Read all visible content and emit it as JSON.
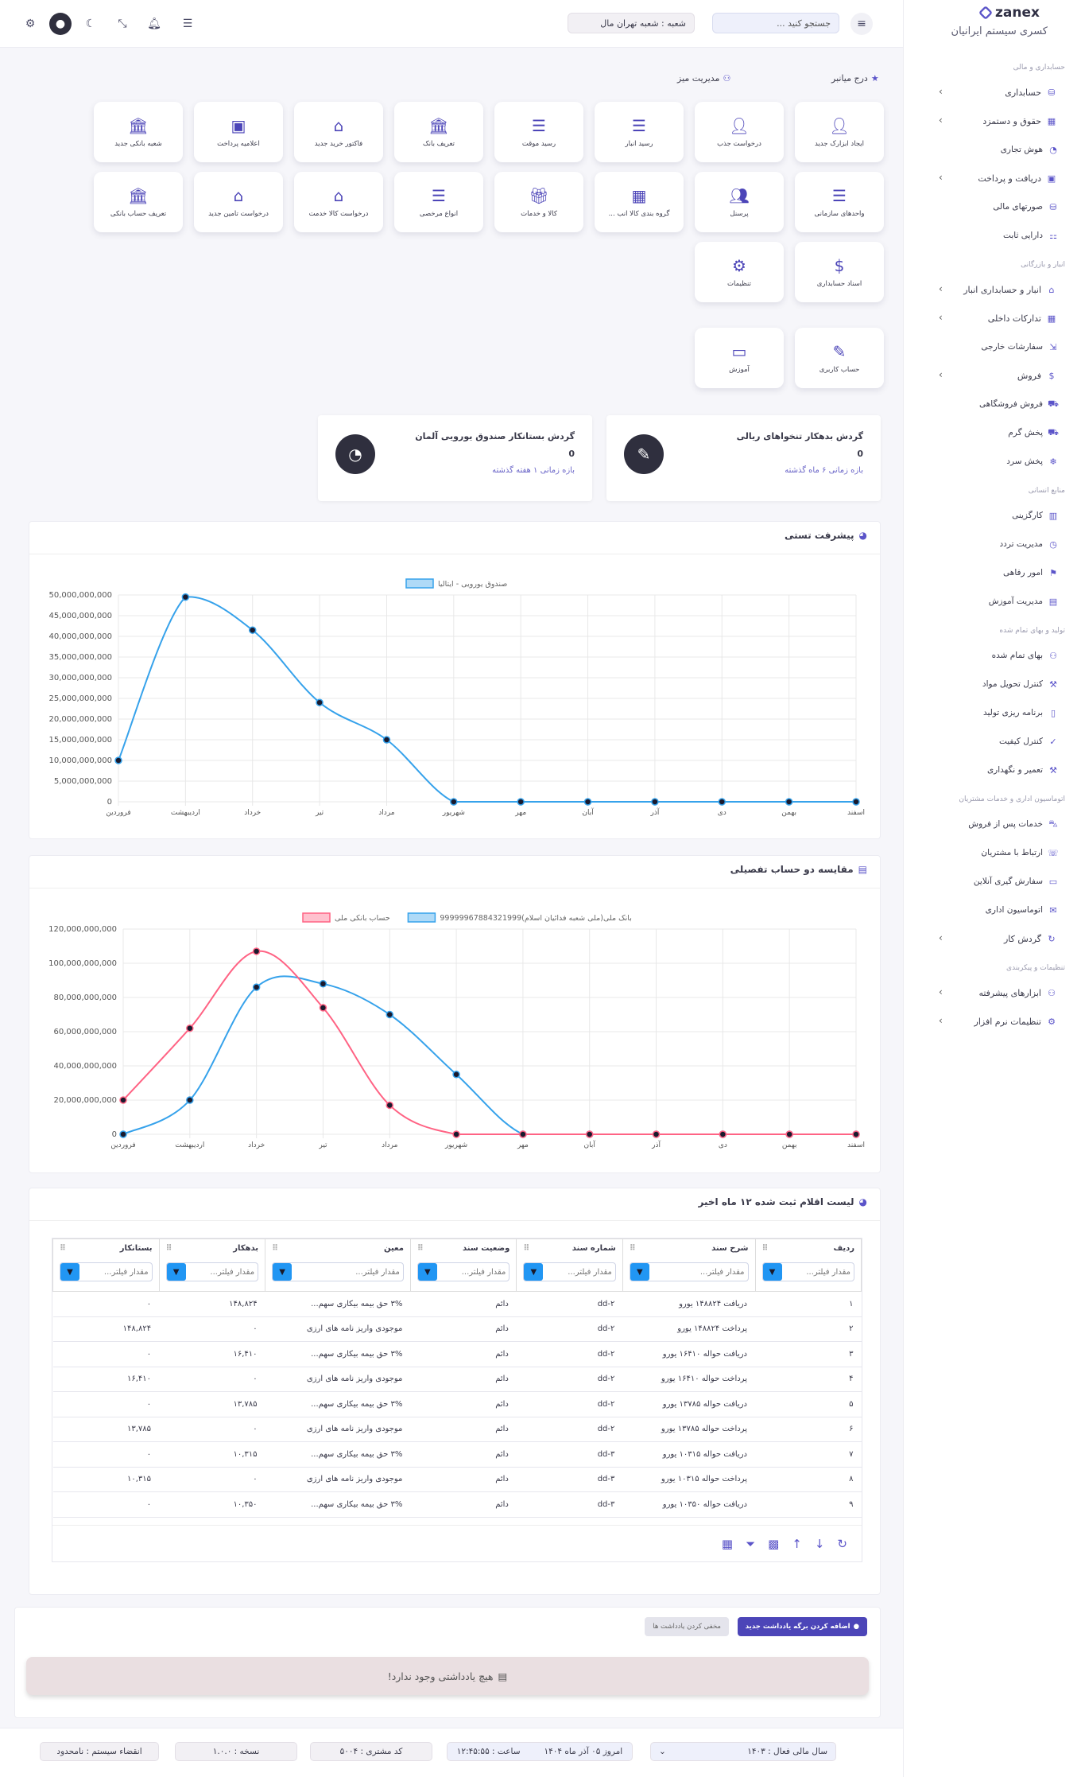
{
  "header": {
    "search_placeholder": "جستجو کنید ...",
    "branch": "شعبه : شعبه تهران مال"
  },
  "brand": {
    "name": "zanex",
    "company": "کسری سیستم ایرانیان"
  },
  "sidebar": {
    "sections": [
      {
        "title": "حسابداری و مالی",
        "items": [
          {
            "label": "حسابداری",
            "chev": true,
            "icon": "coins-icon"
          },
          {
            "label": "حقوق و دستمزد",
            "chev": true,
            "icon": "payroll-icon"
          },
          {
            "label": "هوش تجاری",
            "chev": false,
            "icon": "chart-pie-icon"
          },
          {
            "label": "دریافت و پرداخت",
            "chev": true,
            "icon": "money-icon"
          },
          {
            "label": "صورتهای مالی",
            "chev": false,
            "icon": "report-icon"
          },
          {
            "label": "دارایی ثابت",
            "chev": false,
            "icon": "asset-icon"
          }
        ]
      },
      {
        "title": "انبار و بازرگانی",
        "items": [
          {
            "label": "انبار و حسابداری انبار",
            "chev": true,
            "icon": "warehouse-icon"
          },
          {
            "label": "تدارکات داخلی",
            "chev": true,
            "icon": "procurement-icon"
          },
          {
            "label": "سفارشات خارجی",
            "chev": false,
            "icon": "import-icon"
          },
          {
            "label": "فروش",
            "chev": true,
            "icon": "invoice-icon"
          },
          {
            "label": "فروش فروشگاهی",
            "chev": false,
            "icon": "cart-icon"
          },
          {
            "label": "پخش گرم",
            "chev": false,
            "icon": "truck-icon"
          },
          {
            "label": "پخش سرد",
            "chev": false,
            "icon": "snow-truck-icon"
          }
        ]
      },
      {
        "title": "منابع انسانی",
        "items": [
          {
            "label": "کارگزینی",
            "chev": false,
            "icon": "folder-icon"
          },
          {
            "label": "مدیریت تردد",
            "chev": false,
            "icon": "clock-icon"
          },
          {
            "label": "امور رفاهی",
            "chev": false,
            "icon": "welfare-icon"
          },
          {
            "label": "مدیریت آموزش",
            "chev": false,
            "icon": "training-icon"
          }
        ]
      },
      {
        "title": "تولید و بهای تمام شده",
        "items": [
          {
            "label": "بهای تمام شده",
            "chev": false,
            "icon": "cost-icon"
          },
          {
            "label": "کنترل تحویل مواد",
            "chev": false,
            "icon": "material-icon"
          },
          {
            "label": "برنامه ریزی تولید",
            "chev": false,
            "icon": "plan-icon"
          },
          {
            "label": "کنترل کیفیت",
            "chev": false,
            "icon": "quality-icon"
          },
          {
            "label": "تعمیر و نگهداری",
            "chev": false,
            "icon": "wrench-icon"
          }
        ]
      },
      {
        "title": "اتوماسیون اداری و خدمات مشتریان",
        "items": [
          {
            "label": "خدمات پس از فروش",
            "chev": false,
            "icon": "car-icon"
          },
          {
            "label": "ارتباط با مشتریان",
            "chev": false,
            "icon": "crm-icon"
          },
          {
            "label": "سفارش گیری آنلاین",
            "chev": false,
            "icon": "online-icon"
          },
          {
            "label": "اتوماسیون اداری",
            "chev": false,
            "icon": "office-icon"
          },
          {
            "label": "گردش کار",
            "chev": true,
            "icon": "workflow-icon"
          }
        ]
      },
      {
        "title": "تنظیمات و پیکربندی",
        "items": [
          {
            "label": "ابزارهای پیشرفته",
            "chev": true,
            "icon": "tools-icon"
          },
          {
            "label": "تنظیمات نرم افزار",
            "chev": true,
            "icon": "gear-icon"
          }
        ]
      }
    ]
  },
  "shortcuts": {
    "quick_label": "درج میانبر",
    "manage_label": "مدیریت میز",
    "tiles": [
      {
        "label": "ایجاد ابزارک جدید",
        "icon": "user-shield-icon"
      },
      {
        "label": "درخواست جذب",
        "icon": "user-plus-icon"
      },
      {
        "label": "رسید انبار",
        "icon": "list-box-icon"
      },
      {
        "label": "رسید موقت",
        "icon": "list-box-icon"
      },
      {
        "label": "تعریف بانک",
        "icon": "bank-icon"
      },
      {
        "label": "فاکتور خرید جدید",
        "icon": "house-icon"
      },
      {
        "label": "اعلامیه پرداخت",
        "icon": "money-icon"
      },
      {
        "label": "شعبه بانکی جدید",
        "icon": "bank-icon"
      },
      {
        "label": "واحدهای سازمانی",
        "icon": "list-icon"
      },
      {
        "label": "پرسنل",
        "icon": "users-icon"
      },
      {
        "label": "گروه بندی کالا انب ...",
        "icon": "grid-icon"
      },
      {
        "label": "کالا و خدمات",
        "icon": "gift-icon"
      },
      {
        "label": "انواع مرخصی",
        "icon": "list-icon"
      },
      {
        "label": "درخواست کالا خدمت",
        "icon": "house-icon"
      },
      {
        "label": "درخواست تامین جدید",
        "icon": "house-icon"
      },
      {
        "label": "تعریف حساب بانکی",
        "icon": "bank-icon"
      },
      {
        "label": "اسناد حسابداری",
        "icon": "file-dollar-icon"
      },
      {
        "label": "تنظیمات",
        "icon": "gear-icon"
      },
      {
        "label": "حساب کاربری",
        "icon": "user-edit-icon"
      },
      {
        "label": "آموزش",
        "icon": "teacher-icon"
      }
    ]
  },
  "stats": [
    {
      "title": "گردش بدهکار تنخواهای ریالی",
      "value": "0",
      "period": "بازه زمانی ۶ ماه گذشته",
      "icon": "edit-doc-icon"
    },
    {
      "title": "گردش بستانکار صندوق یورویی آلمان",
      "value": "0",
      "period": "بازه زمانی ۱ هفته گذشته",
      "icon": "pie-dollar-icon"
    }
  ],
  "chart1_card": {
    "title": "پیشرفت تستی"
  },
  "chart2_card": {
    "title": "مقایسه دو حساب تفصیلی"
  },
  "chart_data": [
    {
      "type": "line",
      "title": "پیشرفت تستی",
      "x": [
        "فروردین",
        "اردیبهشت",
        "خرداد",
        "تیر",
        "مرداد",
        "شهریور",
        "مهر",
        "آبان",
        "آذر",
        "دی",
        "بهمن",
        "اسفند"
      ],
      "series": [
        {
          "name": "صندوق یورویی - ایتالیا",
          "color": "#36a2eb",
          "values": [
            10000000,
            49500000,
            41500000,
            24000000,
            15000000,
            0,
            0,
            0,
            0,
            0,
            0,
            0
          ]
        }
      ],
      "y_ticks": [
        "50,000,000,000",
        "45,000,000,000",
        "40,000,000,000",
        "35,000,000,000",
        "30,000,000,000",
        "25,000,000,000",
        "20,000,000,000",
        "15,000,000,000",
        "10,000,000,000",
        "5,000,000,000",
        "0"
      ],
      "ylim": [
        0,
        50000000
      ],
      "legend": "top",
      "grid": true
    },
    {
      "type": "line",
      "title": "مقایسه دو حساب تفصیلی",
      "x": [
        "فروردین",
        "اردیبهشت",
        "خرداد",
        "تیر",
        "مرداد",
        "شهریور",
        "مهر",
        "آبان",
        "آذر",
        "دی",
        "بهمن",
        "اسفند"
      ],
      "series": [
        {
          "name": "بانک ملی(ملی شعبه فدائیان اسلام)99999967884321999",
          "color": "#36a2eb",
          "values": [
            0,
            20000000,
            86000000,
            88000000,
            70000000,
            35000000,
            0,
            0,
            0,
            0,
            0,
            0
          ]
        },
        {
          "name": "حساب بانکی ملی",
          "color": "#ff6384",
          "values": [
            20000000,
            62000000,
            107000000,
            74000000,
            17000000,
            0,
            0,
            0,
            0,
            0,
            0,
            0
          ]
        }
      ],
      "y_ticks": [
        "120,000,000,000",
        "100,000,000,000",
        "80,000,000,000",
        "60,000,000,000",
        "40,000,000,000",
        "20,000,000,000",
        "0"
      ],
      "ylim": [
        0,
        120000000
      ],
      "legend": "top",
      "grid": true
    }
  ],
  "table": {
    "title": "لیست اقلام ثبت شده ۱۲ ماه اخیر",
    "filter_placeholder": "مقدار فیلتر...",
    "columns": [
      "ردیف",
      "شرح سند",
      "شماره سند",
      "وضعیت سند",
      "معین",
      "بدهکار",
      "بستانکار"
    ],
    "rows": [
      [
        "۱",
        "دریافت ۱۴۸۸۲۴ یورو",
        "dd-۲",
        "دائم",
        "۳% حق بیمه بیکاری سهم...",
        "۱۴۸,۸۲۴",
        "۰"
      ],
      [
        "۲",
        "پرداخت ۱۴۸۸۲۴ یورو",
        "dd-۲",
        "دائم",
        "موجودی واریز نامه های ارزی",
        "۰",
        "۱۴۸,۸۲۴"
      ],
      [
        "۳",
        "دریافت حواله ۱۶۴۱۰ یورو",
        "dd-۲",
        "دائم",
        "۳% حق بیمه بیکاری سهم...",
        "۱۶,۴۱۰",
        "۰"
      ],
      [
        "۴",
        "پرداخت حواله ۱۶۴۱۰ یورو",
        "dd-۲",
        "دائم",
        "موجودی واریز نامه های ارزی",
        "۰",
        "۱۶,۴۱۰"
      ],
      [
        "۵",
        "دریافت حواله ۱۳۷۸۵ یورو",
        "dd-۲",
        "دائم",
        "۳% حق بیمه بیکاری سهم...",
        "۱۳,۷۸۵",
        "۰"
      ],
      [
        "۶",
        "پرداخت حواله ۱۳۷۸۵ یورو",
        "dd-۲",
        "دائم",
        "موجودی واریز نامه های ارزی",
        "۰",
        "۱۳,۷۸۵"
      ],
      [
        "۷",
        "دریافت حواله ۱۰۳۱۵ یورو",
        "dd-۳",
        "دائم",
        "۳% حق بیمه بیکاری سهم...",
        "۱۰,۳۱۵",
        "۰"
      ],
      [
        "۸",
        "پرداخت حواله ۱۰۳۱۵ یورو",
        "dd-۳",
        "دائم",
        "موجودی واریز نامه های ارزی",
        "۰",
        "۱۰,۳۱۵"
      ],
      [
        "۹",
        "دریافت حواله ۱۰۳۵۰ یورو",
        "dd-۳",
        "دائم",
        "۳% حق بیمه بیکاری سهم...",
        "۱۰,۳۵۰",
        "۰"
      ]
    ]
  },
  "notes": {
    "add_label": "اضافه کردن برگه یادداشت جدید",
    "hide_label": "مخفی کردن یادداشت ها",
    "empty": "هیچ یادداشتی وجود ندارد!"
  },
  "footer": {
    "fiscal_year": "سال مالی فعال : ۱۴۰۳",
    "date": "امروز ۰۵ آذر ماه ۱۴۰۴",
    "time": "ساعت : ۱۲:۴۵:۵۵",
    "customer_code": "کد مشتری : ۵۰۰۴",
    "version": "نسخه : ۱.۰.۰",
    "expiry": "انقضاء سیستم : نامحدود"
  },
  "colors": {
    "accent": "#5b54c9",
    "blue": "#36a2eb",
    "red": "#ff6384",
    "dark": "#2f2f3e"
  }
}
